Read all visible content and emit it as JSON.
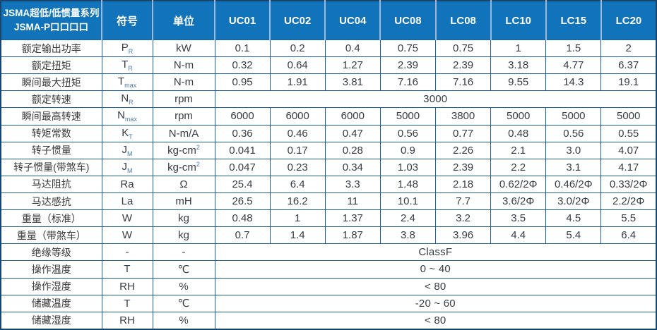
{
  "chart_data": {
    "type": "table",
    "title": "JSMA超低/低惯量系列 JSMA-P口口口口 伺服马达规格表",
    "colors": {
      "header_bg": "#1173b9",
      "header_text": "#ffffff",
      "grid_line": "#1d5f9e",
      "outer_border": "#16456e",
      "header_separator": "#9db7d8",
      "body_text": "#363d45",
      "subscript_accent": "#4d7cb8"
    },
    "header": {
      "title_line1": "JSMA超低/低惯量系列",
      "title_line2": "JSMA-P口口口口",
      "symbol_col": "符号",
      "unit_col": "单位",
      "models": [
        "UC01",
        "UC02",
        "UC04",
        "UC08",
        "LC08",
        "LC10",
        "LC15",
        "LC20"
      ]
    },
    "rows": [
      {
        "label": "额定输出功率",
        "sym": "P",
        "sub": "R",
        "unit": "kW",
        "values": [
          "0.1",
          "0.2",
          "0.4",
          "0.75",
          "0.75",
          "1",
          "1.5",
          "2"
        ]
      },
      {
        "label": "额定扭矩",
        "sym": "T",
        "sub": "R",
        "unit": "N-m",
        "values": [
          "0.32",
          "0.64",
          "1.27",
          "2.39",
          "2.39",
          "3.18",
          "4.77",
          "6.37"
        ]
      },
      {
        "label": "瞬间最大扭矩",
        "sym": "T",
        "sub": "max",
        "unit": "N-m",
        "values": [
          "0.95",
          "1.91",
          "3.81",
          "7.16",
          "7.16",
          "9.55",
          "14.3",
          "19.1"
        ]
      },
      {
        "label": "额定转速",
        "sym": "N",
        "sub": "R",
        "unit": "rpm",
        "merged": "3000"
      },
      {
        "label": "瞬间最高转速",
        "sym": "N",
        "sub": "max",
        "unit": "rpm",
        "values": [
          "6000",
          "6000",
          "6000",
          "5000",
          "3800",
          "5000",
          "5000",
          "5000"
        ]
      },
      {
        "label": "转矩常数",
        "sym": "K",
        "sub": "T",
        "unit": "N-m/A",
        "values": [
          "0.36",
          "0.46",
          "0.47",
          "0.56",
          "0.77",
          "0.48",
          "0.56",
          "0.55"
        ]
      },
      {
        "label": "转子惯量",
        "sym": "J",
        "sub": "M",
        "unit": "kg-cm",
        "unit_sup": "2",
        "values": [
          "0.041",
          "0.17",
          "0.28",
          "0.9",
          "2.26",
          "2.1",
          "3.0",
          "4.07"
        ]
      },
      {
        "label": "转子惯量(带煞车)",
        "sym": "J",
        "sub": "M",
        "unit": "kg-cm",
        "unit_sup": "2",
        "values": [
          "0.047",
          "0.23",
          "0.34",
          "1.03",
          "2.39",
          "2.2",
          "3.1",
          "4.17"
        ]
      },
      {
        "label": "马达阻抗",
        "sym": "Ra",
        "unit": "Ω",
        "values": [
          "25.4",
          "6.4",
          "3.3",
          "1.48",
          "2.18",
          "0.62/2Φ",
          "0.46/2Φ",
          "0.33/2Φ"
        ]
      },
      {
        "label": "马达感抗",
        "sym": "La",
        "unit": "mH",
        "values": [
          "26.5",
          "16.2",
          "11",
          "10.1",
          "7.7",
          "3.6/2Φ",
          "3.0/2Φ",
          "2.2/2Φ"
        ]
      },
      {
        "label": "重量（标准）",
        "sym": "W",
        "unit": "kg",
        "values": [
          "0.48",
          "1",
          "1.37",
          "2.4",
          "3.2",
          "3.5",
          "4.5",
          "5.5"
        ]
      },
      {
        "label": "重量（带煞车）",
        "sym": "W",
        "unit": "kg",
        "values": [
          "0.7",
          "1.4",
          "1.87",
          "3.8",
          "3.96",
          "4.4",
          "5.4",
          "6.4"
        ]
      },
      {
        "label": "绝缘等级",
        "sym": "-",
        "unit": "-",
        "merged": "ClassF"
      },
      {
        "label": "操作温度",
        "sym": "T",
        "unit": "℃",
        "merged": "0 ~ 40"
      },
      {
        "label": "操作湿度",
        "sym": "RH",
        "unit": "%",
        "merged": "< 80"
      },
      {
        "label": "储藏温度",
        "sym": "T",
        "unit": "℃",
        "merged": "-20 ~ 60"
      },
      {
        "label": "储藏湿度",
        "sym": "RH",
        "unit": "%",
        "merged": "< 80"
      }
    ]
  }
}
